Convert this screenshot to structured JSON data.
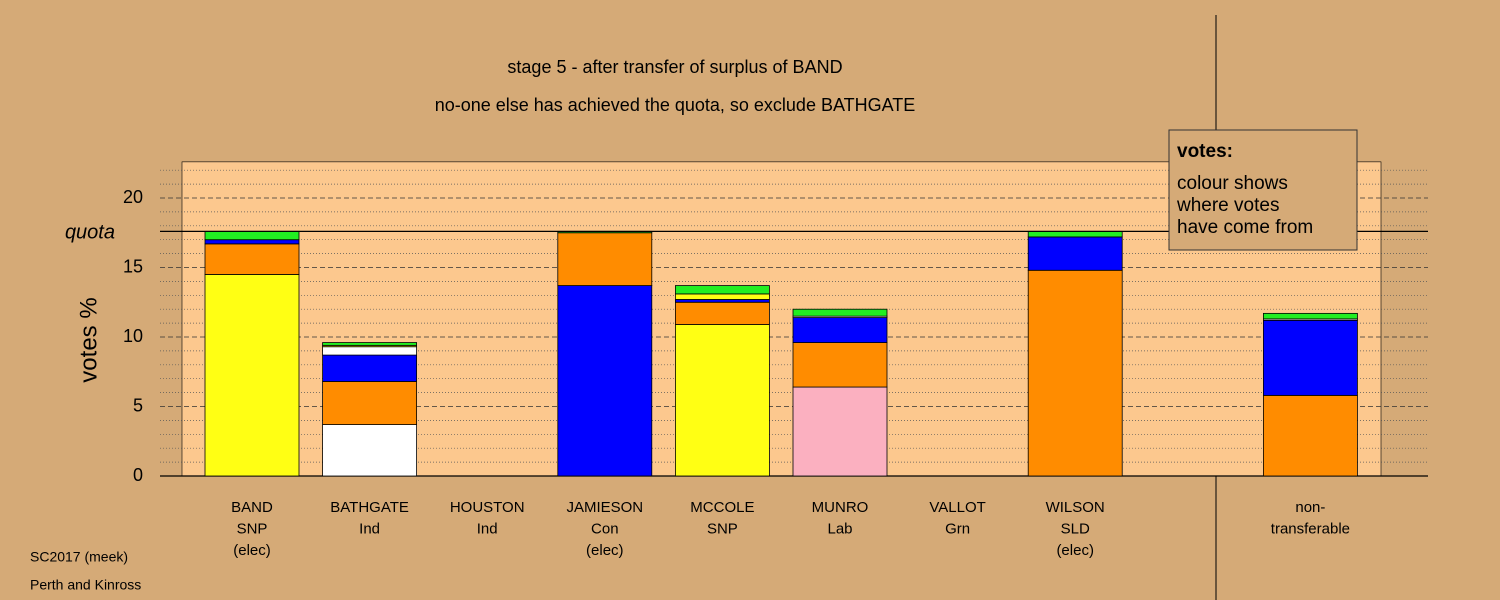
{
  "chart_data": {
    "type": "stacked_bar",
    "title": "stage 5 - after transfer of surplus of BAND",
    "subtitle": "no-one else has achieved the quota, so exclude BATHGATE",
    "y_label": "votes %",
    "categories": [
      [
        "BAND",
        "SNP",
        "(elec)"
      ],
      [
        "BATHGATE",
        "Ind"
      ],
      [
        "HOUSTON",
        "Ind"
      ],
      [
        "JAMIESON",
        "Con",
        "(elec)"
      ],
      [
        "MCCOLE",
        "SNP"
      ],
      [
        "MUNRO",
        "Lab"
      ],
      [
        "VALLOT",
        "Grn"
      ],
      [
        "WILSON",
        "SLD",
        "(elec)"
      ],
      [
        "non-",
        "transferable"
      ]
    ],
    "series": [
      {
        "color": "#ffff14",
        "values": [
          14.5,
          null,
          null,
          null,
          10.9,
          null,
          null,
          null,
          null
        ]
      },
      {
        "color": "#ffffff",
        "values": [
          null,
          3.7,
          null,
          null,
          null,
          null,
          null,
          null,
          null
        ]
      },
      {
        "color": "#fbb0c0",
        "values": [
          null,
          null,
          null,
          null,
          null,
          6.4,
          null,
          null,
          null
        ]
      },
      {
        "color": "#0000ff",
        "values": [
          null,
          null,
          null,
          13.7,
          null,
          null,
          null,
          null,
          null
        ]
      },
      {
        "color": "#ff8c00",
        "values": [
          2.2,
          3.1,
          null,
          3.8,
          1.6,
          3.2,
          null,
          14.8,
          5.8
        ]
      },
      {
        "color": "#0000ff",
        "values": [
          0.3,
          1.9,
          null,
          null,
          0.2,
          1.8,
          null,
          2.4,
          5.4
        ]
      },
      {
        "color": "#ffffff",
        "values": [
          null,
          0.6,
          null,
          null,
          null,
          0.1,
          null,
          null,
          0.1
        ]
      },
      {
        "color": "#ffff14",
        "values": [
          null,
          0.1,
          null,
          null,
          0.4,
          null,
          null,
          null,
          null
        ]
      },
      {
        "color": "#22ee22",
        "values": [
          0.6,
          0.2,
          null,
          0.1,
          0.6,
          0.5,
          null,
          0.4,
          0.4
        ]
      }
    ],
    "ylim": [
      0,
      22.6
    ],
    "yticks": [
      0,
      5,
      10,
      15,
      20
    ],
    "minor_yticks": [
      1,
      2,
      3,
      4,
      6,
      7,
      8,
      9,
      11,
      12,
      13,
      14,
      16,
      17,
      18,
      19,
      21,
      22
    ],
    "quota": {
      "label": "quota",
      "value": 17.6
    },
    "legend": {
      "title": "votes:",
      "lines": [
        "colour shows",
        "where votes",
        "have come from"
      ]
    },
    "footer": [
      "SC2017 (meek)",
      "Perth and Kinross"
    ]
  }
}
